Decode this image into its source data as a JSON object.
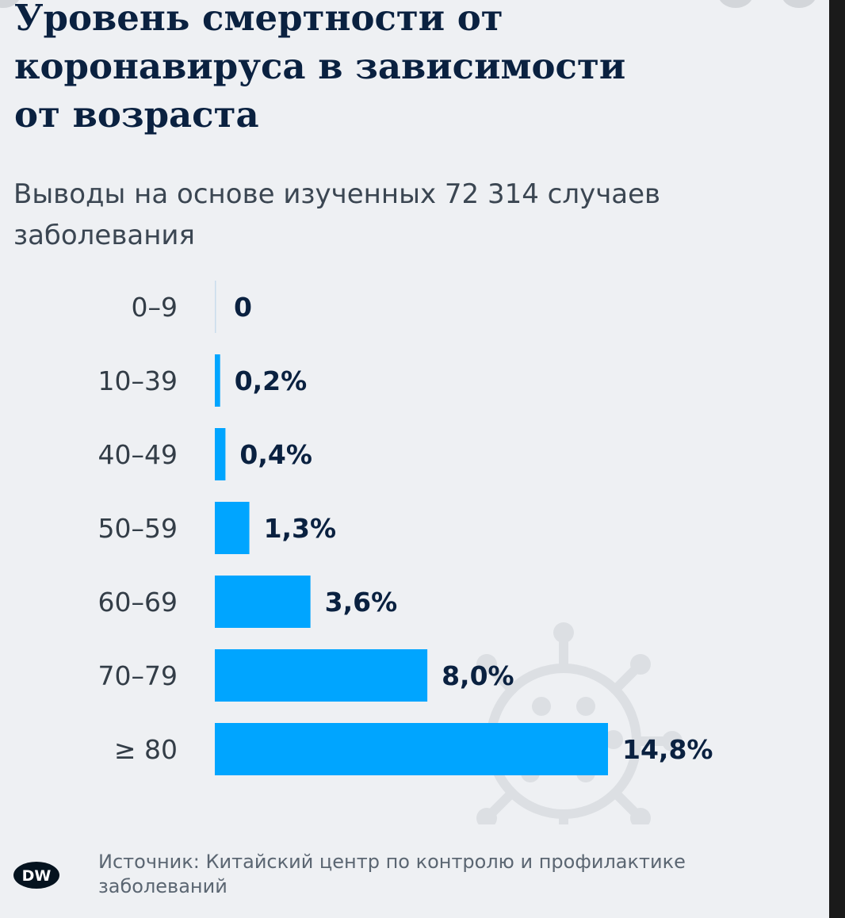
{
  "title": "Уровень смертности от\nкоронавируса в зависимости\nот возраста",
  "subtitle": "Выводы на основе изученных 72 314 случаев заболевания",
  "source": "Источник: Китайский центр по контролю и профилактике заболеваний",
  "logo_text": "DW",
  "colors": {
    "background": "#eef0f3",
    "bar": "#00a5ff",
    "value_text": "#0a2140",
    "category_text": "#333d47",
    "virus_icon": "#dcdfe3"
  },
  "decoration_icon": "coronavirus-icon",
  "chart_data": {
    "type": "bar",
    "orientation": "horizontal",
    "title": "Уровень смертности от коронавируса в зависимости от возраста",
    "categories": [
      "0–9",
      "10–39",
      "40–49",
      "50–59",
      "60–69",
      "70–79",
      "≥ 80"
    ],
    "values": [
      0,
      0.2,
      0.4,
      1.3,
      3.6,
      8.0,
      14.8
    ],
    "value_labels": [
      "0",
      "0,2%",
      "0,4%",
      "1,3%",
      "3,6%",
      "8,0%",
      "14,8%"
    ],
    "unit": "%",
    "xlim": [
      0,
      14.8
    ],
    "grid": false,
    "legend": "none"
  }
}
